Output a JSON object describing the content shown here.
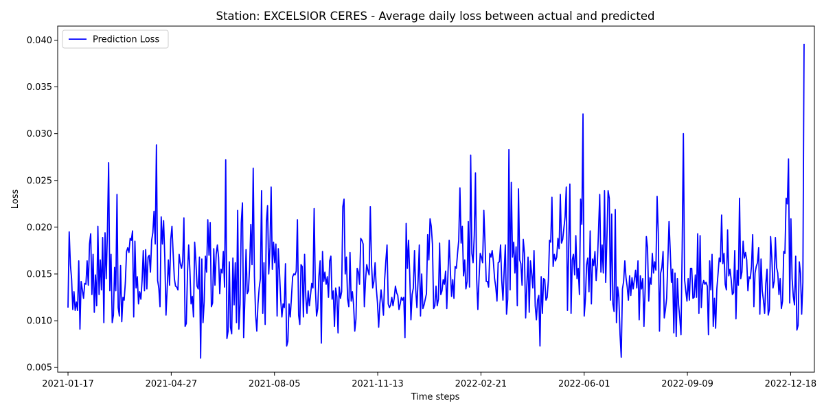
{
  "chart_data": {
    "type": "line",
    "title": "Station: EXCELSIOR CERES - Average daily loss between actual and predicted",
    "xlabel": "Time steps",
    "ylabel": "Loss",
    "x_start": "2021-01-17",
    "x_end": "2022-12-31",
    "xlim": [
      "2021-01-07",
      "2023-01-10"
    ],
    "ylim": [
      0.0045,
      0.0415
    ],
    "y_ticks": [
      "0.005",
      "0.010",
      "0.015",
      "0.020",
      "0.025",
      "0.030",
      "0.035",
      "0.040"
    ],
    "x_ticks": [
      "2021-01-17",
      "2021-04-27",
      "2021-08-05",
      "2021-11-13",
      "2022-02-21",
      "2022-06-01",
      "2022-09-09",
      "2022-12-18"
    ],
    "legend": {
      "placement": "top-left",
      "entries": [
        "Prediction Loss"
      ]
    },
    "grid": false,
    "colors": {
      "line": "#0000ff"
    },
    "series": [
      {
        "name": "Prediction Loss",
        "values": [
          0.0114,
          0.0195,
          0.016,
          0.0145,
          0.0112,
          0.0131,
          0.0111,
          0.012,
          0.0111,
          0.0164,
          0.0091,
          0.0142,
          0.0133,
          0.0124,
          0.014,
          0.0139,
          0.0164,
          0.0138,
          0.0182,
          0.0193,
          0.0128,
          0.0171,
          0.0109,
          0.0149,
          0.0116,
          0.0201,
          0.0128,
          0.0165,
          0.0133,
          0.0189,
          0.0098,
          0.0194,
          0.0145,
          0.0196,
          0.0269,
          0.0132,
          0.0171,
          0.0098,
          0.0106,
          0.0157,
          0.0132,
          0.0235,
          0.0114,
          0.0105,
          0.0159,
          0.0099,
          0.0125,
          0.0122,
          0.0141,
          0.0174,
          0.0178,
          0.0173,
          0.0188,
          0.0186,
          0.0196,
          0.0104,
          0.0185,
          0.0135,
          0.0147,
          0.0118,
          0.0131,
          0.0123,
          0.0143,
          0.0175,
          0.0132,
          0.0176,
          0.0134,
          0.0168,
          0.017,
          0.0152,
          0.0186,
          0.0194,
          0.0217,
          0.0182,
          0.0288,
          0.0143,
          0.0135,
          0.0115,
          0.0211,
          0.0182,
          0.0207,
          0.0168,
          0.0106,
          0.0135,
          0.0165,
          0.0138,
          0.0187,
          0.0201,
          0.0172,
          0.0145,
          0.0137,
          0.0136,
          0.0133,
          0.0171,
          0.0161,
          0.0156,
          0.0164,
          0.021,
          0.0094,
          0.0097,
          0.0151,
          0.0181,
          0.0154,
          0.0118,
          0.0126,
          0.0104,
          0.0184,
          0.0164,
          0.0137,
          0.0134,
          0.0168,
          0.006,
          0.0166,
          0.0098,
          0.0121,
          0.0169,
          0.0152,
          0.0208,
          0.017,
          0.0205,
          0.0115,
          0.0119,
          0.0177,
          0.0138,
          0.0171,
          0.0181,
          0.0168,
          0.0129,
          0.0155,
          0.0151,
          0.0174,
          0.0136,
          0.0272,
          0.0081,
          0.0089,
          0.0163,
          0.0093,
          0.0086,
          0.0167,
          0.0117,
          0.0162,
          0.0098,
          0.0218,
          0.0091,
          0.0118,
          0.0205,
          0.0226,
          0.0082,
          0.0122,
          0.0176,
          0.0129,
          0.0132,
          0.0158,
          0.0203,
          0.016,
          0.0263,
          0.0148,
          0.0107,
          0.0089,
          0.0118,
          0.0135,
          0.0145,
          0.0239,
          0.0108,
          0.0162,
          0.0096,
          0.0205,
          0.0223,
          0.015,
          0.0178,
          0.0243,
          0.0155,
          0.0184,
          0.0162,
          0.0182,
          0.0105,
          0.0177,
          0.0152,
          0.0123,
          0.0104,
          0.0118,
          0.0114,
          0.0161,
          0.0073,
          0.0078,
          0.0118,
          0.0104,
          0.0125,
          0.0147,
          0.015,
          0.0149,
          0.0153,
          0.0208,
          0.0106,
          0.0096,
          0.016,
          0.0158,
          0.0104,
          0.0171,
          0.0126,
          0.0108,
          0.0132,
          0.0116,
          0.0128,
          0.014,
          0.0135,
          0.022,
          0.0136,
          0.0105,
          0.0113,
          0.0148,
          0.0164,
          0.0076,
          0.0174,
          0.0142,
          0.0152,
          0.0139,
          0.0147,
          0.0125,
          0.0164,
          0.0169,
          0.0123,
          0.0132,
          0.0094,
          0.0135,
          0.0126,
          0.0087,
          0.0136,
          0.0124,
          0.0131,
          0.0222,
          0.023,
          0.015,
          0.0168,
          0.0123,
          0.0115,
          0.0173,
          0.0121,
          0.0131,
          0.0117,
          0.0089,
          0.0102,
          0.0156,
          0.0152,
          0.0139,
          0.0188,
          0.0186,
          0.0182,
          0.0115,
          0.0143,
          0.016,
          0.0154,
          0.0149,
          0.0222,
          0.0161,
          0.0135,
          0.0142,
          0.0162,
          0.0135,
          0.0119,
          0.0093,
          0.0118,
          0.0133,
          0.012,
          0.0106,
          0.0144,
          0.0164,
          0.0181,
          0.0118,
          0.0114,
          0.0117,
          0.0125,
          0.0116,
          0.0124,
          0.0137,
          0.013,
          0.0127,
          0.0112,
          0.0118,
          0.0125,
          0.0122,
          0.0125,
          0.0082,
          0.0204,
          0.0156,
          0.0186,
          0.0149,
          0.0101,
          0.0128,
          0.0135,
          0.0175,
          0.0133,
          0.0114,
          0.0144,
          0.0181,
          0.0105,
          0.015,
          0.0113,
          0.0117,
          0.0123,
          0.0129,
          0.0192,
          0.0165,
          0.0209,
          0.0201,
          0.0182,
          0.0113,
          0.0116,
          0.0137,
          0.0116,
          0.0123,
          0.0183,
          0.0128,
          0.0132,
          0.0144,
          0.0139,
          0.0153,
          0.0113,
          0.0151,
          0.0186,
          0.0153,
          0.0126,
          0.0144,
          0.0124,
          0.0158,
          0.0156,
          0.0172,
          0.0186,
          0.0242,
          0.0183,
          0.0201,
          0.0148,
          0.0165,
          0.0134,
          0.0142,
          0.0206,
          0.0136,
          0.0277,
          0.0172,
          0.0162,
          0.0191,
          0.0258,
          0.0145,
          0.0112,
          0.0146,
          0.0172,
          0.0168,
          0.0162,
          0.0218,
          0.0183,
          0.0142,
          0.0142,
          0.0136,
          0.0172,
          0.0168,
          0.0175,
          0.0163,
          0.0145,
          0.0136,
          0.0121,
          0.0162,
          0.0163,
          0.0181,
          0.0143,
          0.0122,
          0.0153,
          0.0181,
          0.0107,
          0.0123,
          0.0283,
          0.0133,
          0.0248,
          0.0168,
          0.0184,
          0.0151,
          0.0179,
          0.0116,
          0.0241,
          0.0165,
          0.0161,
          0.0138,
          0.0187,
          0.0172,
          0.0103,
          0.0138,
          0.0168,
          0.0109,
          0.0164,
          0.0151,
          0.0135,
          0.0175,
          0.0116,
          0.0101,
          0.0122,
          0.0127,
          0.0073,
          0.0147,
          0.0108,
          0.0145,
          0.0144,
          0.0122,
          0.0125,
          0.0143,
          0.0186,
          0.0184,
          0.0232,
          0.0158,
          0.0171,
          0.0164,
          0.0168,
          0.0188,
          0.0177,
          0.0235,
          0.0183,
          0.0187,
          0.0199,
          0.0211,
          0.0243,
          0.0111,
          0.0178,
          0.0246,
          0.0108,
          0.0165,
          0.0171,
          0.0149,
          0.0191,
          0.0145,
          0.0156,
          0.0128,
          0.023,
          0.0203,
          0.0321,
          0.0105,
          0.0123,
          0.016,
          0.0167,
          0.0131,
          0.0196,
          0.0118,
          0.0166,
          0.0159,
          0.0174,
          0.0143,
          0.0161,
          0.0197,
          0.0235,
          0.0152,
          0.0181,
          0.0151,
          0.0239,
          0.0141,
          0.0188,
          0.0239,
          0.0231,
          0.0122,
          0.0214,
          0.0118,
          0.011,
          0.0219,
          0.0098,
          0.0136,
          0.0125,
          0.0085,
          0.0061,
          0.0134,
          0.0142,
          0.0164,
          0.0146,
          0.0136,
          0.0122,
          0.0148,
          0.0127,
          0.0146,
          0.0134,
          0.0144,
          0.0154,
          0.0135,
          0.0164,
          0.0101,
          0.0148,
          0.0134,
          0.0145,
          0.0094,
          0.0134,
          0.019,
          0.0178,
          0.0121,
          0.0146,
          0.0139,
          0.0172,
          0.0151,
          0.0163,
          0.0154,
          0.0233,
          0.0193,
          0.0089,
          0.0151,
          0.0157,
          0.0174,
          0.0103,
          0.0112,
          0.0124,
          0.0164,
          0.0206,
          0.0175,
          0.0141,
          0.0155,
          0.0087,
          0.0151,
          0.0083,
          0.0145,
          0.0117,
          0.0103,
          0.0085,
          0.0178,
          0.03,
          0.0144,
          0.0132,
          0.0121,
          0.0145,
          0.0122,
          0.0156,
          0.0156,
          0.0124,
          0.0125,
          0.0149,
          0.0125,
          0.0193,
          0.0108,
          0.0191,
          0.0114,
          0.0138,
          0.0143,
          0.0139,
          0.0141,
          0.0137,
          0.0085,
          0.0164,
          0.0133,
          0.0171,
          0.0094,
          0.0124,
          0.0092,
          0.0134,
          0.015,
          0.0167,
          0.0163,
          0.0213,
          0.0161,
          0.0172,
          0.0139,
          0.0133,
          0.0197,
          0.0148,
          0.0155,
          0.0144,
          0.0128,
          0.013,
          0.0175,
          0.0102,
          0.0154,
          0.0138,
          0.0231,
          0.0145,
          0.0152,
          0.0185,
          0.0167,
          0.0173,
          0.0165,
          0.0132,
          0.0147,
          0.0145,
          0.0158,
          0.0192,
          0.0115,
          0.0151,
          0.0158,
          0.0162,
          0.0178,
          0.0107,
          0.0166,
          0.0132,
          0.0122,
          0.0108,
          0.014,
          0.0155,
          0.0106,
          0.0112,
          0.019,
          0.0168,
          0.0135,
          0.0142,
          0.0189,
          0.0157,
          0.0151,
          0.0128,
          0.0145,
          0.0113,
          0.0121,
          0.0174,
          0.0172,
          0.0231,
          0.0225,
          0.0273,
          0.0119,
          0.0209,
          0.0145,
          0.0126,
          0.0117,
          0.0169,
          0.009,
          0.0095,
          0.0163,
          0.0151,
          0.0107,
          0.0141,
          0.0396
        ]
      }
    ]
  }
}
